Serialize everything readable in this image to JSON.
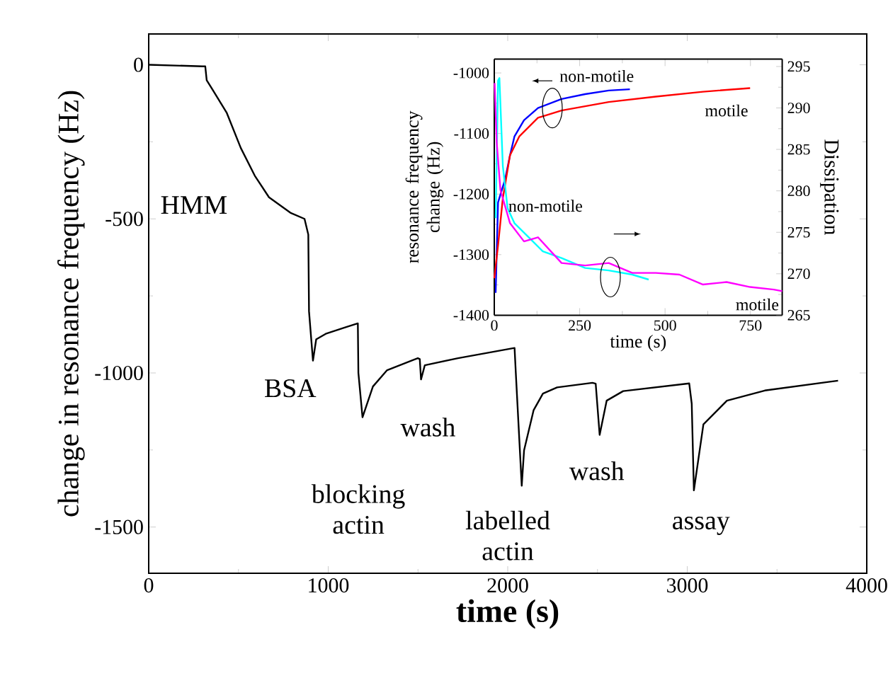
{
  "chart_data": [
    {
      "type": "line",
      "xlabel": "time (s)",
      "ylabel": "change in resonance frequency (Hz)",
      "xlim": [
        0,
        4000
      ],
      "ylim": [
        -1650,
        100
      ],
      "xticks": [
        0,
        1000,
        2000,
        3000,
        4000
      ],
      "yticks": [
        -1500,
        -1000,
        -500,
        0
      ],
      "series": [
        {
          "color": "#000000",
          "x": [
            0,
            300,
            315,
            323,
            355,
            434,
            513,
            591,
            670,
            789,
            868,
            889,
            893,
            915,
            933,
            986,
            1091,
            1165,
            1168,
            1191,
            1249,
            1328,
            1499,
            1510,
            1517,
            1538,
            1723,
            2038,
            2045,
            2078,
            2091,
            2144,
            2196,
            2275,
            2472,
            2490,
            2512,
            2551,
            2643,
            3011,
            3025,
            3037,
            3090,
            3221,
            3432,
            3787,
            3840
          ],
          "values": [
            0,
            -5,
            -5,
            -50,
            -80,
            -155,
            -270,
            -360,
            -430,
            -480,
            -500,
            -551,
            -800,
            -960,
            -891,
            -873,
            -853,
            -839,
            -1000,
            -1144,
            -1044,
            -991,
            -952,
            -955,
            -1021,
            -975,
            -952,
            -919,
            -1000,
            -1366,
            -1251,
            -1121,
            -1067,
            -1047,
            -1032,
            -1035,
            -1201,
            -1090,
            -1059,
            -1034,
            -1100,
            -1381,
            -1167,
            -1090,
            -1057,
            -1029,
            -1025
          ]
        }
      ],
      "annotations": [
        "HMM",
        "BSA",
        "wash",
        "blocking actin",
        "wash",
        "labelled actin",
        "assay"
      ]
    },
    {
      "type": "line",
      "xlabel": "time (s)",
      "ylabel": "resonance frequency change (Hz)",
      "y2label": "Dissipation",
      "xlim": [
        0,
        843
      ],
      "ylim": [
        -1400,
        -977
      ],
      "y2lim": [
        265,
        295.9
      ],
      "xticks": [
        0,
        250,
        500,
        750
      ],
      "yticks": [
        -1400,
        -1300,
        -1200,
        -1100,
        -1000
      ],
      "y2ticks": [
        265,
        270,
        275,
        280,
        285,
        290,
        295
      ],
      "series": [
        {
          "name": "non-motile",
          "color": "#0000ff",
          "x": [
            4,
            11,
            32,
            46,
            59,
            87,
            128,
            197,
            266,
            335,
            397
          ],
          "values": [
            -1363,
            -1214,
            -1175,
            -1136,
            -1105,
            -1078,
            -1058,
            -1043,
            -1035,
            -1029,
            -1027
          ]
        },
        {
          "name": "motile",
          "color": "#ff0000",
          "x": [
            0,
            11,
            25,
            46,
            73,
            128,
            197,
            335,
            473,
            611,
            749
          ],
          "values": [
            -1339,
            -1285,
            -1207,
            -1136,
            -1105,
            -1074,
            -1062,
            -1048,
            -1039,
            -1031,
            -1025
          ]
        },
        {
          "name": "non-motile",
          "color": "#00ffff",
          "axis": "y2",
          "x": [
            4,
            11,
            15,
            25,
            39,
            59,
            101,
            142,
            197,
            266,
            335,
            404,
            452
          ],
          "values": [
            276.7,
            293.3,
            293.6,
            283,
            277.9,
            276.1,
            274.4,
            272.7,
            271.9,
            270.7,
            270.4,
            269.9,
            269.3
          ]
        },
        {
          "name": "motile",
          "color": "#ff00ff",
          "axis": "y2",
          "x": [
            1,
            7,
            18,
            46,
            87,
            128,
            197,
            266,
            335,
            404,
            473,
            542,
            611,
            680,
            749,
            818,
            843
          ],
          "values": [
            293,
            285.9,
            280.1,
            276.1,
            273.9,
            274.4,
            271.3,
            271,
            271.3,
            270.1,
            270.1,
            269.9,
            268.7,
            269,
            268.4,
            268.1,
            267.9
          ]
        }
      ]
    }
  ]
}
